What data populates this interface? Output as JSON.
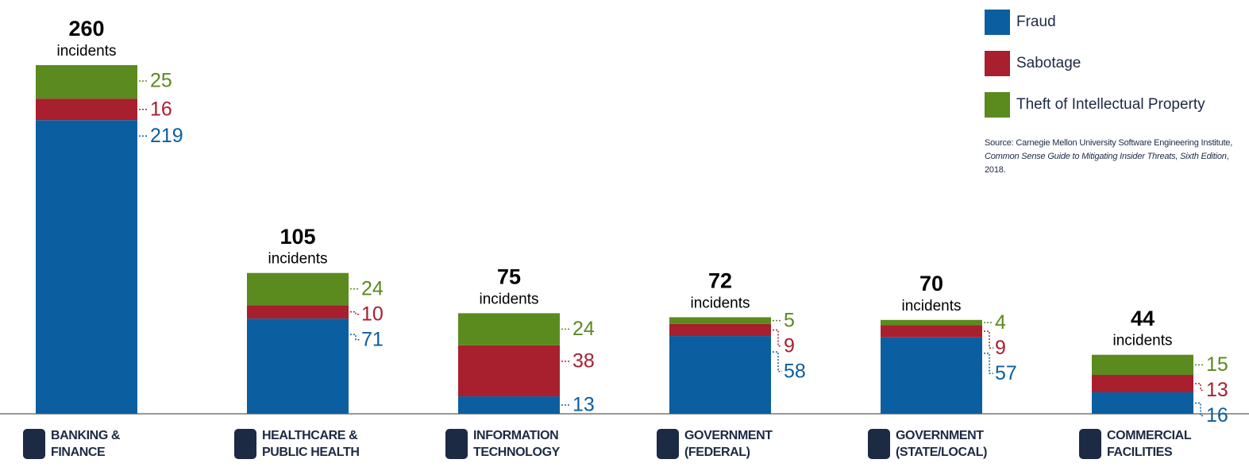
{
  "chart_data": {
    "type": "stacked_bar",
    "categories": [
      "BANKING & FINANCE",
      "HEALTHCARE & PUBLIC HEALTH",
      "INFORMATION TECHNOLOGY",
      "GOVERNMENT (FEDERAL)",
      "GOVERNMENT (STATE/LOCAL)",
      "COMMERCIAL FACILITIES"
    ],
    "series": [
      {
        "name": "Fraud",
        "color": "#0b5fa0",
        "values": [
          219,
          71,
          13,
          58,
          57,
          16
        ]
      },
      {
        "name": "Sabotage",
        "color": "#a81f2e",
        "values": [
          16,
          10,
          38,
          9,
          9,
          13
        ]
      },
      {
        "name": "Theft of Intellectual Property",
        "color": "#5b8a1e",
        "values": [
          25,
          24,
          24,
          5,
          4,
          15
        ]
      }
    ],
    "totals": [
      260,
      105,
      75,
      72,
      70,
      44
    ],
    "total_unit": "incidents",
    "ylim": [
      0,
      260
    ],
    "legend": "top-right",
    "source": {
      "prefix": "Source: Carnegie Mellon University Software Engineering Institute, ",
      "title": "Common Sense Guide to Mitigating Insider Threats, Sixth Edition",
      "suffix": ", 2018."
    }
  }
}
